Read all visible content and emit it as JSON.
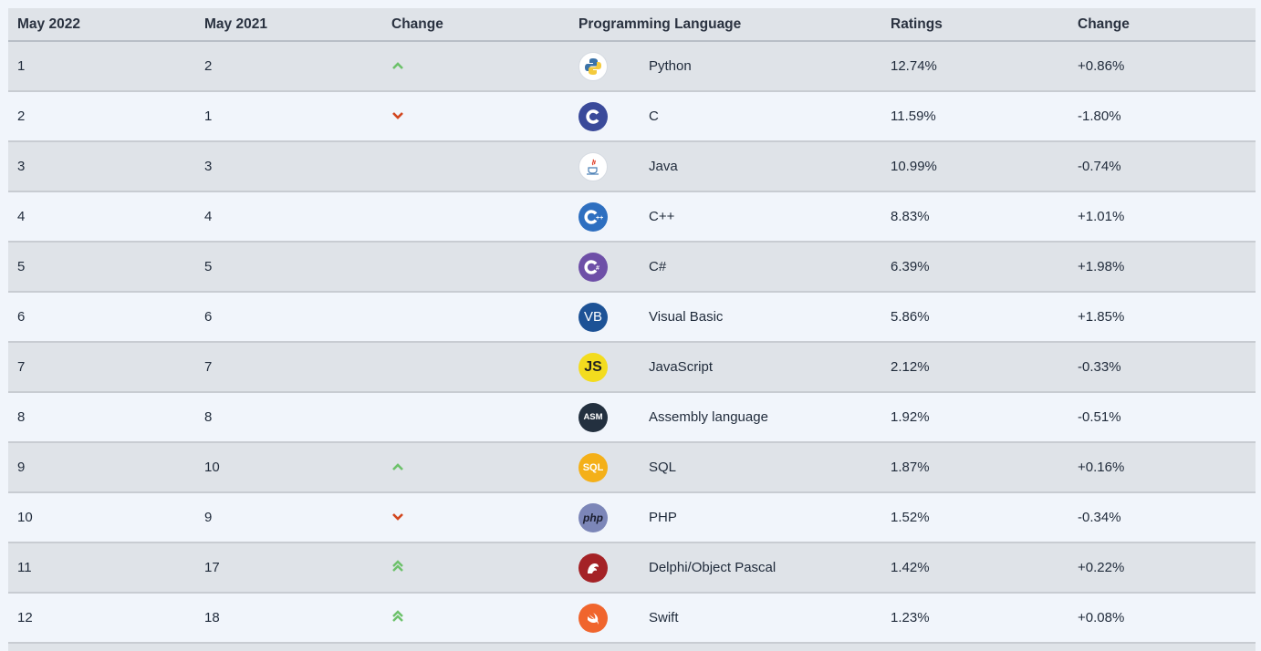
{
  "headers": {
    "current": "May 2022",
    "previous": "May 2021",
    "change_icon": "Change",
    "language": "Programming Language",
    "ratings": "Ratings",
    "change": "Change"
  },
  "rows": [
    {
      "current": "1",
      "previous": "2",
      "trend": "up",
      "language": "Python",
      "ratings": "12.74%",
      "change": "+0.86%",
      "logo": "python-icon"
    },
    {
      "current": "2",
      "previous": "1",
      "trend": "down",
      "language": "C",
      "ratings": "11.59%",
      "change": "-1.80%",
      "logo": "c-icon"
    },
    {
      "current": "3",
      "previous": "3",
      "trend": "none",
      "language": "Java",
      "ratings": "10.99%",
      "change": "-0.74%",
      "logo": "java-icon"
    },
    {
      "current": "4",
      "previous": "4",
      "trend": "none",
      "language": "C++",
      "ratings": "8.83%",
      "change": "+1.01%",
      "logo": "cpp-icon"
    },
    {
      "current": "5",
      "previous": "5",
      "trend": "none",
      "language": "C#",
      "ratings": "6.39%",
      "change": "+1.98%",
      "logo": "csharp-icon"
    },
    {
      "current": "6",
      "previous": "6",
      "trend": "none",
      "language": "Visual Basic",
      "ratings": "5.86%",
      "change": "+1.85%",
      "logo": "vb-icon",
      "logo_text": "VB"
    },
    {
      "current": "7",
      "previous": "7",
      "trend": "none",
      "language": "JavaScript",
      "ratings": "2.12%",
      "change": "-0.33%",
      "logo": "js-icon",
      "logo_text": "JS"
    },
    {
      "current": "8",
      "previous": "8",
      "trend": "none",
      "language": "Assembly language",
      "ratings": "1.92%",
      "change": "-0.51%",
      "logo": "asm-icon",
      "logo_text": "ASM"
    },
    {
      "current": "9",
      "previous": "10",
      "trend": "up",
      "language": "SQL",
      "ratings": "1.87%",
      "change": "+0.16%",
      "logo": "sql-icon",
      "logo_text": "SQL"
    },
    {
      "current": "10",
      "previous": "9",
      "trend": "down",
      "language": "PHP",
      "ratings": "1.52%",
      "change": "-0.34%",
      "logo": "php-icon",
      "logo_text": "php"
    },
    {
      "current": "11",
      "previous": "17",
      "trend": "up2",
      "language": "Delphi/Object Pascal",
      "ratings": "1.42%",
      "change": "+0.22%",
      "logo": "delphi-icon"
    },
    {
      "current": "12",
      "previous": "18",
      "trend": "up2",
      "language": "Swift",
      "ratings": "1.23%",
      "change": "+0.08%",
      "logo": "swift-icon"
    }
  ],
  "colors": {
    "up": "#6cc16a",
    "down": "#d2461e",
    "row_alt": "#dfe3e8",
    "row_base": "#f1f5fb"
  }
}
